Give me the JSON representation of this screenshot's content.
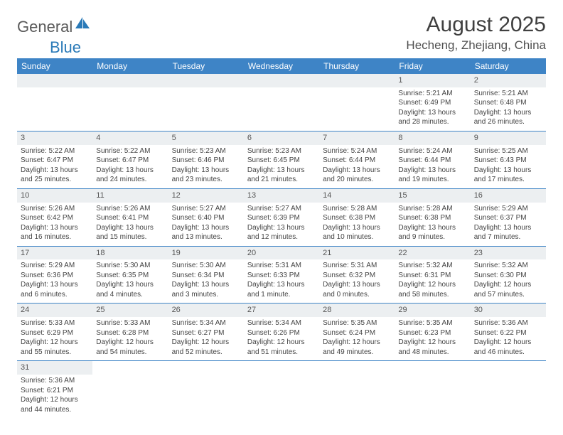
{
  "logo": {
    "part1": "General",
    "part2": "Blue"
  },
  "title": "August 2025",
  "location": "Hecheng, Zhejiang, China",
  "colors": {
    "header_bg": "#3e84c6",
    "header_text": "#ffffff",
    "daybar_bg": "#eceff1",
    "border": "#3e84c6",
    "logo_gray": "#5a5a5a",
    "logo_blue": "#2a7ab8"
  },
  "weekdays": [
    "Sunday",
    "Monday",
    "Tuesday",
    "Wednesday",
    "Thursday",
    "Friday",
    "Saturday"
  ],
  "weeks": [
    [
      null,
      null,
      null,
      null,
      null,
      {
        "day": "1",
        "sunrise": "Sunrise: 5:21 AM",
        "sunset": "Sunset: 6:49 PM",
        "daylight": "Daylight: 13 hours and 28 minutes."
      },
      {
        "day": "2",
        "sunrise": "Sunrise: 5:21 AM",
        "sunset": "Sunset: 6:48 PM",
        "daylight": "Daylight: 13 hours and 26 minutes."
      }
    ],
    [
      {
        "day": "3",
        "sunrise": "Sunrise: 5:22 AM",
        "sunset": "Sunset: 6:47 PM",
        "daylight": "Daylight: 13 hours and 25 minutes."
      },
      {
        "day": "4",
        "sunrise": "Sunrise: 5:22 AM",
        "sunset": "Sunset: 6:47 PM",
        "daylight": "Daylight: 13 hours and 24 minutes."
      },
      {
        "day": "5",
        "sunrise": "Sunrise: 5:23 AM",
        "sunset": "Sunset: 6:46 PM",
        "daylight": "Daylight: 13 hours and 23 minutes."
      },
      {
        "day": "6",
        "sunrise": "Sunrise: 5:23 AM",
        "sunset": "Sunset: 6:45 PM",
        "daylight": "Daylight: 13 hours and 21 minutes."
      },
      {
        "day": "7",
        "sunrise": "Sunrise: 5:24 AM",
        "sunset": "Sunset: 6:44 PM",
        "daylight": "Daylight: 13 hours and 20 minutes."
      },
      {
        "day": "8",
        "sunrise": "Sunrise: 5:24 AM",
        "sunset": "Sunset: 6:44 PM",
        "daylight": "Daylight: 13 hours and 19 minutes."
      },
      {
        "day": "9",
        "sunrise": "Sunrise: 5:25 AM",
        "sunset": "Sunset: 6:43 PM",
        "daylight": "Daylight: 13 hours and 17 minutes."
      }
    ],
    [
      {
        "day": "10",
        "sunrise": "Sunrise: 5:26 AM",
        "sunset": "Sunset: 6:42 PM",
        "daylight": "Daylight: 13 hours and 16 minutes."
      },
      {
        "day": "11",
        "sunrise": "Sunrise: 5:26 AM",
        "sunset": "Sunset: 6:41 PM",
        "daylight": "Daylight: 13 hours and 15 minutes."
      },
      {
        "day": "12",
        "sunrise": "Sunrise: 5:27 AM",
        "sunset": "Sunset: 6:40 PM",
        "daylight": "Daylight: 13 hours and 13 minutes."
      },
      {
        "day": "13",
        "sunrise": "Sunrise: 5:27 AM",
        "sunset": "Sunset: 6:39 PM",
        "daylight": "Daylight: 13 hours and 12 minutes."
      },
      {
        "day": "14",
        "sunrise": "Sunrise: 5:28 AM",
        "sunset": "Sunset: 6:38 PM",
        "daylight": "Daylight: 13 hours and 10 minutes."
      },
      {
        "day": "15",
        "sunrise": "Sunrise: 5:28 AM",
        "sunset": "Sunset: 6:38 PM",
        "daylight": "Daylight: 13 hours and 9 minutes."
      },
      {
        "day": "16",
        "sunrise": "Sunrise: 5:29 AM",
        "sunset": "Sunset: 6:37 PM",
        "daylight": "Daylight: 13 hours and 7 minutes."
      }
    ],
    [
      {
        "day": "17",
        "sunrise": "Sunrise: 5:29 AM",
        "sunset": "Sunset: 6:36 PM",
        "daylight": "Daylight: 13 hours and 6 minutes."
      },
      {
        "day": "18",
        "sunrise": "Sunrise: 5:30 AM",
        "sunset": "Sunset: 6:35 PM",
        "daylight": "Daylight: 13 hours and 4 minutes."
      },
      {
        "day": "19",
        "sunrise": "Sunrise: 5:30 AM",
        "sunset": "Sunset: 6:34 PM",
        "daylight": "Daylight: 13 hours and 3 minutes."
      },
      {
        "day": "20",
        "sunrise": "Sunrise: 5:31 AM",
        "sunset": "Sunset: 6:33 PM",
        "daylight": "Daylight: 13 hours and 1 minute."
      },
      {
        "day": "21",
        "sunrise": "Sunrise: 5:31 AM",
        "sunset": "Sunset: 6:32 PM",
        "daylight": "Daylight: 13 hours and 0 minutes."
      },
      {
        "day": "22",
        "sunrise": "Sunrise: 5:32 AM",
        "sunset": "Sunset: 6:31 PM",
        "daylight": "Daylight: 12 hours and 58 minutes."
      },
      {
        "day": "23",
        "sunrise": "Sunrise: 5:32 AM",
        "sunset": "Sunset: 6:30 PM",
        "daylight": "Daylight: 12 hours and 57 minutes."
      }
    ],
    [
      {
        "day": "24",
        "sunrise": "Sunrise: 5:33 AM",
        "sunset": "Sunset: 6:29 PM",
        "daylight": "Daylight: 12 hours and 55 minutes."
      },
      {
        "day": "25",
        "sunrise": "Sunrise: 5:33 AM",
        "sunset": "Sunset: 6:28 PM",
        "daylight": "Daylight: 12 hours and 54 minutes."
      },
      {
        "day": "26",
        "sunrise": "Sunrise: 5:34 AM",
        "sunset": "Sunset: 6:27 PM",
        "daylight": "Daylight: 12 hours and 52 minutes."
      },
      {
        "day": "27",
        "sunrise": "Sunrise: 5:34 AM",
        "sunset": "Sunset: 6:26 PM",
        "daylight": "Daylight: 12 hours and 51 minutes."
      },
      {
        "day": "28",
        "sunrise": "Sunrise: 5:35 AM",
        "sunset": "Sunset: 6:24 PM",
        "daylight": "Daylight: 12 hours and 49 minutes."
      },
      {
        "day": "29",
        "sunrise": "Sunrise: 5:35 AM",
        "sunset": "Sunset: 6:23 PM",
        "daylight": "Daylight: 12 hours and 48 minutes."
      },
      {
        "day": "30",
        "sunrise": "Sunrise: 5:36 AM",
        "sunset": "Sunset: 6:22 PM",
        "daylight": "Daylight: 12 hours and 46 minutes."
      }
    ],
    [
      {
        "day": "31",
        "sunrise": "Sunrise: 5:36 AM",
        "sunset": "Sunset: 6:21 PM",
        "daylight": "Daylight: 12 hours and 44 minutes."
      },
      null,
      null,
      null,
      null,
      null,
      null
    ]
  ]
}
